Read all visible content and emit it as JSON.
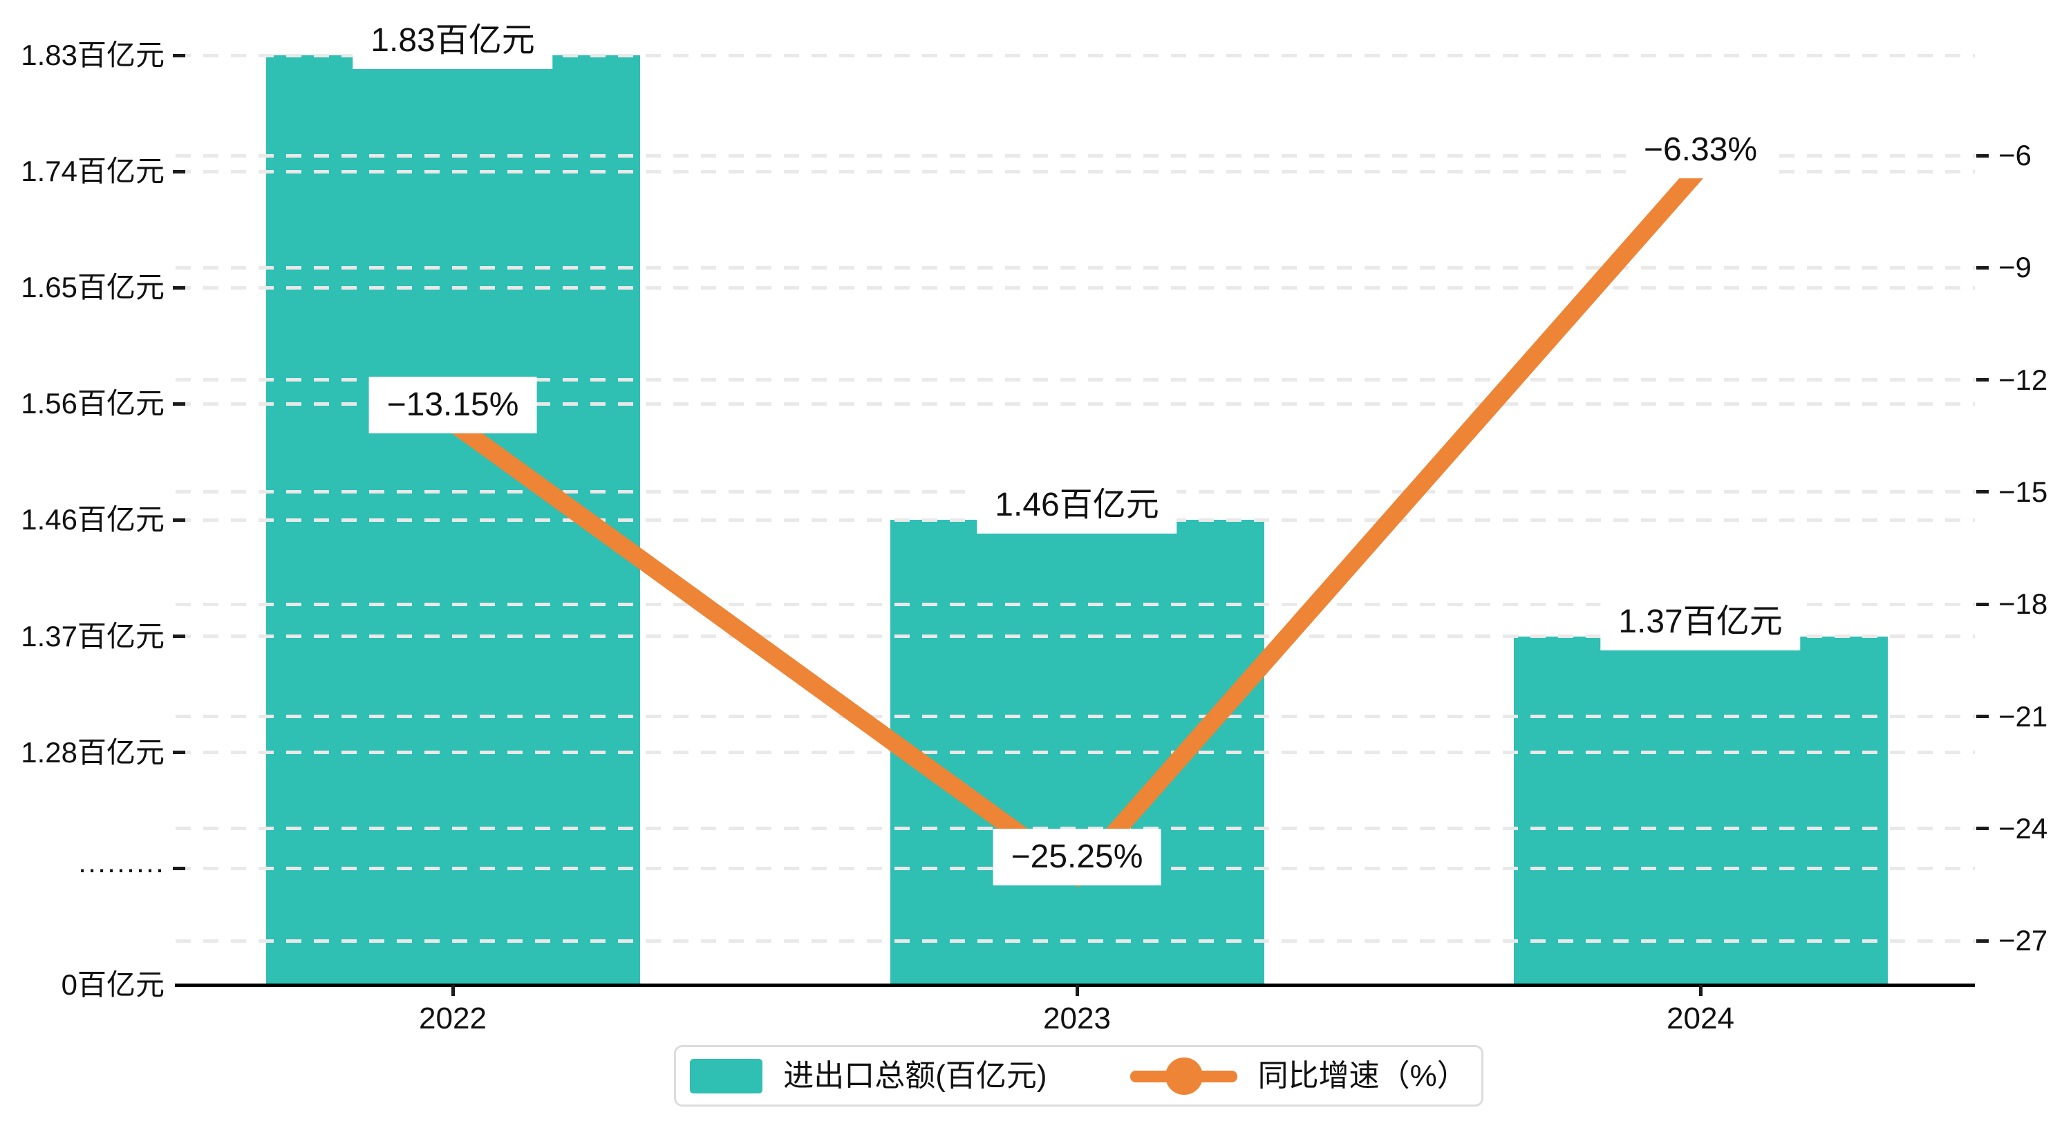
{
  "chart_data": {
    "type": "bar",
    "subtype": "bar+line combo, dual y-axis",
    "categories": [
      "2022",
      "2023",
      "2024"
    ],
    "series": [
      {
        "name": "进出口总额(百亿元)",
        "type": "bar",
        "unit": "百亿元",
        "values": [
          1.83,
          1.46,
          1.37
        ],
        "data_labels": [
          "1.83百亿元",
          "1.46百亿元",
          "1.37百亿元"
        ],
        "color": "#2fbfb3"
      },
      {
        "name": "同比增速（%）",
        "type": "line",
        "unit": "%",
        "values": [
          -13.15,
          -25.25,
          -6.33
        ],
        "data_labels": [
          "−13.15%",
          "−25.25%",
          "−6.33%"
        ],
        "color": "#ee8435"
      }
    ],
    "left_axis": {
      "tick_labels": [
        "1.83百亿元",
        "1.74百亿元",
        "1.65百亿元",
        "1.56百亿元",
        "1.46百亿元",
        "1.37百亿元",
        "1.28百亿元",
        "·········",
        "0百亿元"
      ],
      "tick_values": [
        1.83,
        1.74,
        1.65,
        1.56,
        1.46,
        1.37,
        1.28,
        null,
        0
      ],
      "has_axis_break": true,
      "break_label": "·········"
    },
    "right_axis": {
      "tick_labels": [
        "−6",
        "−9",
        "−12",
        "−15",
        "−18",
        "−21",
        "−24",
        "−27"
      ],
      "tick_values": [
        -6,
        -9,
        -12,
        -15,
        -18,
        -21,
        -24,
        -27
      ]
    },
    "grid": "dashed horizontal",
    "legend_position": "bottom-center",
    "title": ""
  },
  "legend": {
    "items": [
      {
        "label": "进出口总额(百亿元)",
        "marker": "bar-swatch",
        "color": "#2fbfb3"
      },
      {
        "label": "同比增速（%）",
        "marker": "line-with-dot",
        "color": "#ee8435"
      }
    ]
  },
  "colors": {
    "bar": "#2fbfb3",
    "line": "#ee8435",
    "grid": "#e9e9e9",
    "axis": "#000000",
    "text": "#111111",
    "label_background": "#ffffff",
    "legend_border": "#dcdcdc"
  }
}
